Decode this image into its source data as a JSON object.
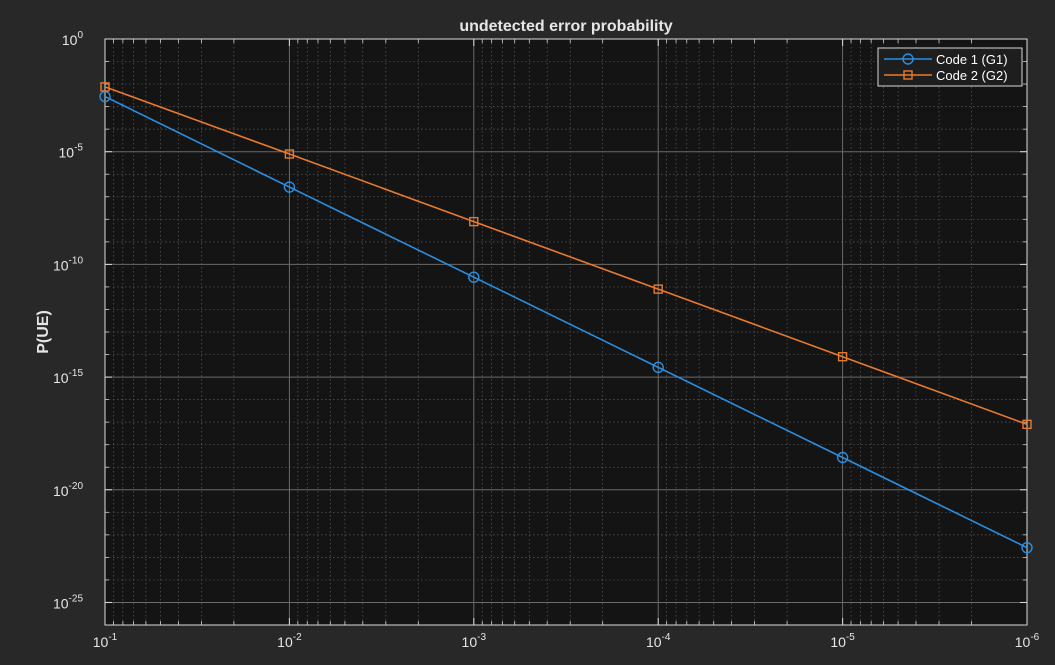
{
  "colors": {
    "figure_bg": "#282828",
    "axes_bg": "#141414",
    "text": "#e6e6e6",
    "series1": "#2b8ee0",
    "series2": "#e87a2e"
  },
  "chart_data": {
    "type": "line",
    "title": "undetected error probability",
    "xlabel": "",
    "ylabel": "P(UE)",
    "xscale": "log",
    "yscale": "log",
    "x_direction": "reversed",
    "xlim": [
      0.1,
      1e-06
    ],
    "ylim": [
      1e-26,
      1
    ],
    "grid": true,
    "minor_grid": true,
    "legend_location": "top-right",
    "x_ticks": [
      {
        "value": 0.1,
        "base": "10",
        "exp": "-1"
      },
      {
        "value": 0.01,
        "base": "10",
        "exp": "-2"
      },
      {
        "value": 0.001,
        "base": "10",
        "exp": "-3"
      },
      {
        "value": 0.0001,
        "base": "10",
        "exp": "-4"
      },
      {
        "value": 1e-05,
        "base": "10",
        "exp": "-5"
      },
      {
        "value": 1e-06,
        "base": "10",
        "exp": "-6"
      }
    ],
    "y_ticks": [
      {
        "value": 1,
        "base": "10",
        "exp": "0"
      },
      {
        "value": 1e-05,
        "base": "10",
        "exp": "-5"
      },
      {
        "value": 1e-10,
        "base": "10",
        "exp": "-10"
      },
      {
        "value": 1e-15,
        "base": "10",
        "exp": "-15"
      },
      {
        "value": 1e-20,
        "base": "10",
        "exp": "-20"
      },
      {
        "value": 1e-25,
        "base": "10",
        "exp": "-25"
      }
    ],
    "x": [
      0.1,
      0.01,
      0.001,
      0.0001,
      1e-05,
      1e-06
    ],
    "series": [
      {
        "name": "Code 1 (G1)",
        "marker": "circle",
        "values": [
          0.0028,
          2.7e-07,
          2.7e-11,
          2.7e-15,
          2.7e-19,
          2.7e-23
        ]
      },
      {
        "name": "Code 2 (G2)",
        "marker": "square",
        "values": [
          0.0075,
          7.9e-06,
          7.9e-09,
          8e-12,
          8e-15,
          8e-18
        ]
      }
    ]
  }
}
